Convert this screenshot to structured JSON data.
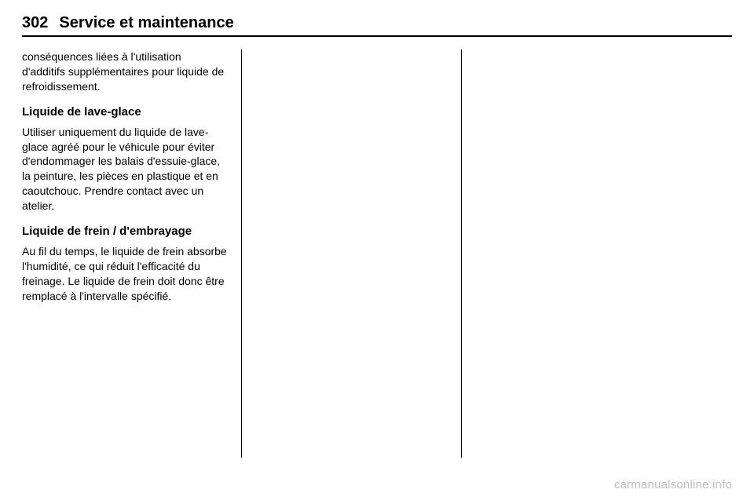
{
  "header": {
    "page_number": "302",
    "title": "Service et maintenance"
  },
  "body": {
    "intro_paragraph": "conséquences liées à l'utilisation d'additifs supplémentaires pour liquide de refroidissement.",
    "section1": {
      "heading": "Liquide de lave-glace",
      "text": "Utiliser uniquement du liquide de lave-glace agréé pour le véhicule pour éviter d'endommager les balais d'essuie-glace, la peinture, les pièces en plastique et en caoutchouc. Prendre contact avec un atelier."
    },
    "section2": {
      "heading": "Liquide de frein / d'embrayage",
      "text": "Au fil du temps, le liquide de frein absorbe l'humidité, ce qui réduit l'efficacité du freinage. Le liquide de frein doit donc être remplacé à l'intervalle spécifié."
    }
  },
  "watermark": "carmanualsonline.info"
}
